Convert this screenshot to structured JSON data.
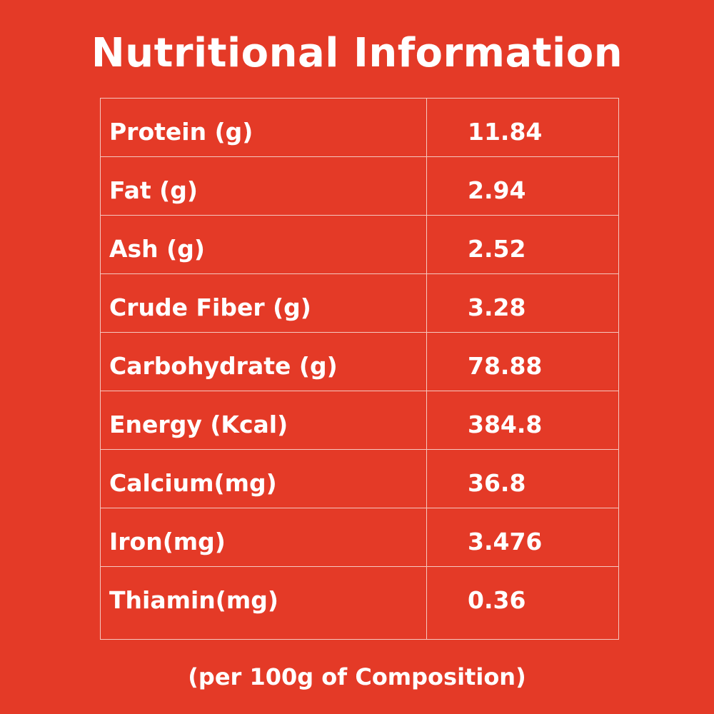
{
  "title": "Nutritional Information",
  "table": {
    "rows": [
      {
        "label": "Protein (g)",
        "value": "11.84"
      },
      {
        "label": "Fat (g)",
        "value": "2.94"
      },
      {
        "label": "Ash (g)",
        "value": "2.52"
      },
      {
        "label": "Crude Fiber (g)",
        "value": "3.28"
      },
      {
        "label": "Carbohydrate (g)",
        "value": "78.88"
      },
      {
        "label": "Energy (Kcal)",
        "value": "384.8"
      },
      {
        "label": "Calcium(mg)",
        "value": "36.8"
      },
      {
        "label": "Iron(mg)",
        "value": "3.476"
      },
      {
        "label": "Thiamin(mg)",
        "value": "0.36"
      }
    ]
  },
  "footnote": "(per 100g of Composition)",
  "colors": {
    "background": "#e43a27",
    "text": "#ffffff",
    "grid": "#f6c7bf"
  }
}
